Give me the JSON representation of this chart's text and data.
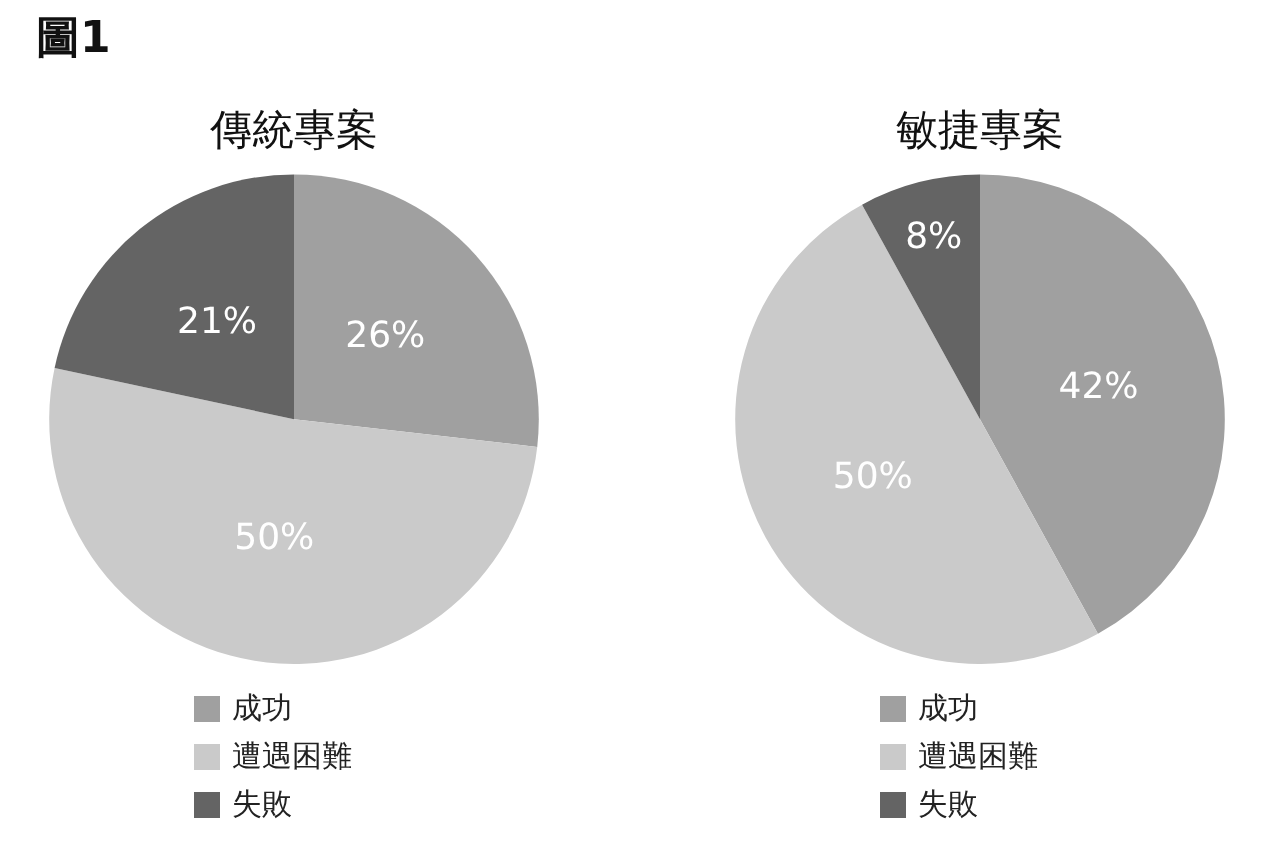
{
  "chart_data": [
    {
      "type": "pie",
      "title": "傳統專案",
      "categories": [
        "成功",
        "遭遇困難",
        "失敗"
      ],
      "values": [
        26,
        50,
        21
      ],
      "colors": [
        "#a0a0a0",
        "#cacaca",
        "#646464"
      ],
      "value_labels": [
        "26%",
        "50%",
        "21%"
      ],
      "legend": "bottom",
      "annotations": [
        "圖1"
      ]
    },
    {
      "type": "pie",
      "title": "敏捷專案",
      "categories": [
        "成功",
        "遭遇困難",
        "失敗"
      ],
      "values": [
        42,
        50,
        8
      ],
      "colors": [
        "#a0a0a0",
        "#cacaca",
        "#646464"
      ],
      "value_labels": [
        "42%",
        "50%",
        "8%"
      ],
      "legend": "bottom"
    }
  ]
}
